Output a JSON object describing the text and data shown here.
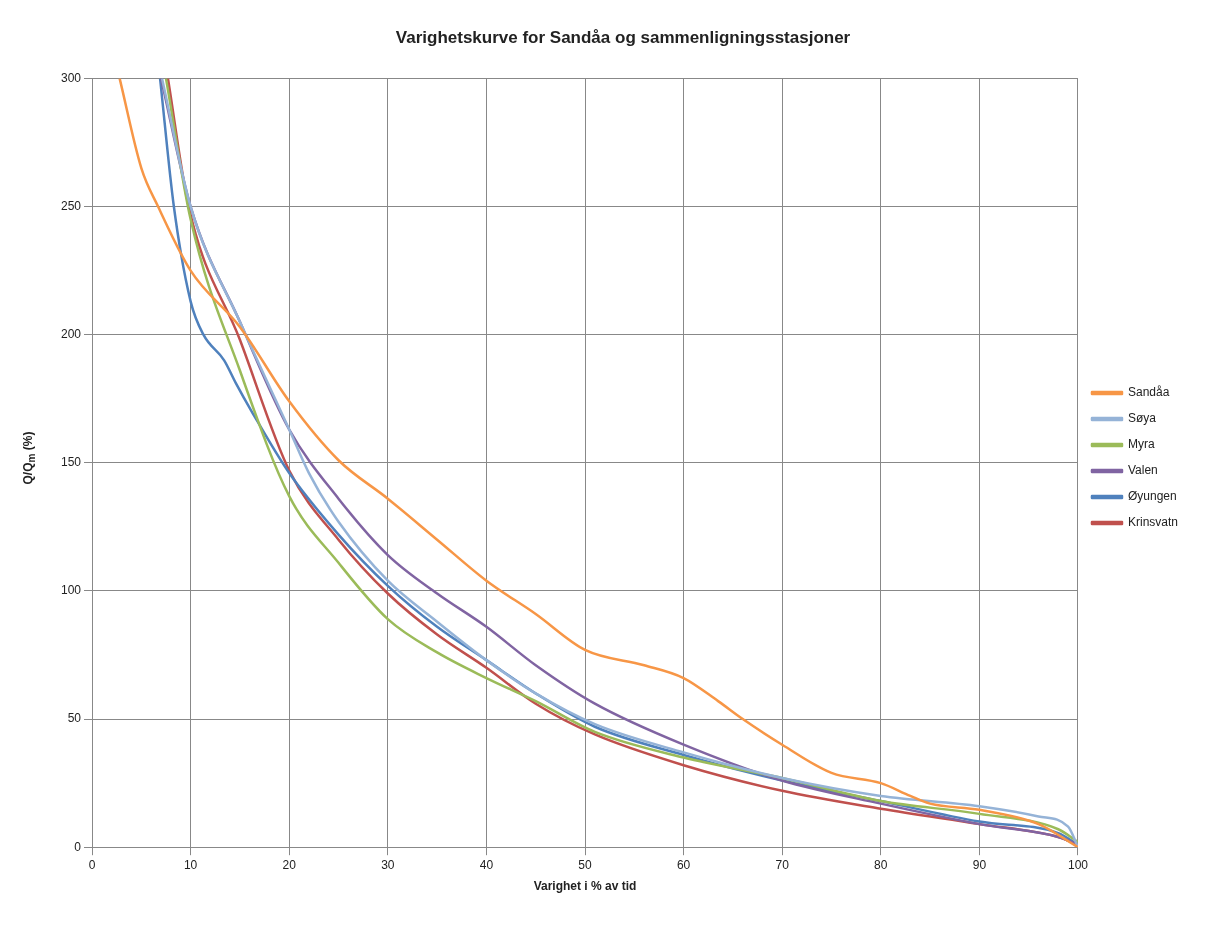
{
  "chart_data": {
    "type": "line",
    "title": "Varighetskurve for Sandåa og sammenligningsstasjoner",
    "xlabel": "Varighet i % av tid",
    "ylabel": "Q/Q$_{m}$ (%)",
    "xlim": [
      0,
      100
    ],
    "xticks": [
      0,
      10,
      20,
      30,
      40,
      50,
      60,
      70,
      80,
      90,
      100
    ],
    "ylim": [
      0,
      300
    ],
    "yticks": [
      0,
      50,
      100,
      150,
      200,
      250,
      300
    ],
    "grid": true,
    "legend": "right",
    "marker": "none",
    "line_style": "solid",
    "series": [
      {
        "name": "Sandåa",
        "color": "#f79646",
        "x": [
          2.8,
          5,
          6.7,
          10,
          15,
          20,
          25,
          30,
          35,
          40,
          45,
          50,
          56,
          60,
          63.5,
          66,
          70,
          75,
          80,
          83,
          85,
          90,
          96,
          100
        ],
        "values": [
          300,
          265,
          250,
          225,
          203,
          174,
          151,
          136,
          120,
          104,
          91,
          77,
          71,
          66,
          57,
          50,
          40,
          29,
          25,
          20,
          17,
          14.6,
          9,
          0
        ]
      },
      {
        "name": "Søya",
        "color": "#95b3d7",
        "x": [
          7.1,
          10,
          15,
          20,
          22,
          25,
          30,
          35,
          40,
          45,
          51,
          60,
          70,
          80,
          90,
          96,
          99,
          100
        ],
        "values": [
          300,
          250,
          205,
          163,
          146,
          127,
          104,
          88,
          73,
          60,
          48,
          37,
          27,
          20,
          16,
          12,
          8,
          0
        ]
      },
      {
        "name": "Myra",
        "color": "#9bbb59",
        "x": [
          7.5,
          10,
          15,
          20,
          25,
          30,
          35,
          40,
          45,
          51,
          60,
          70,
          80,
          90,
          98,
          100
        ],
        "values": [
          300,
          245,
          186,
          137,
          111,
          89,
          76,
          66,
          57,
          45,
          35,
          27,
          18,
          13,
          7,
          2
        ]
      },
      {
        "name": "Valen",
        "color": "#8064a2",
        "x": [
          7,
          10,
          15,
          20,
          25,
          30,
          35,
          40,
          45,
          51,
          60,
          70,
          80,
          90,
          98,
          100
        ],
        "values": [
          300,
          250,
          205,
          163,
          136,
          114,
          99,
          86,
          71,
          56,
          40,
          26,
          17,
          9,
          4,
          1
        ]
      },
      {
        "name": "Øyungen",
        "color": "#4f81bd",
        "x": [
          6.9,
          8.3,
          10,
          11.3,
          13.4,
          14.6,
          16.2,
          20,
          25,
          30,
          35,
          40,
          45,
          51,
          60,
          70,
          80,
          90,
          98,
          100
        ],
        "values": [
          300,
          250,
          213,
          200,
          190,
          181,
          170,
          146,
          122,
          102,
          86,
          73,
          60,
          47,
          36,
          26,
          18,
          10,
          5.5,
          1
        ]
      },
      {
        "name": "Krinsvatn",
        "color": "#c0504d",
        "x": [
          7.7,
          9.8,
          15,
          20,
          25,
          30,
          35,
          40,
          45,
          51,
          60,
          70,
          80,
          90,
          98,
          100
        ],
        "values": [
          300,
          250,
          198,
          147,
          120,
          99,
          83,
          70,
          56,
          44,
          32,
          22,
          15,
          9,
          4,
          1
        ]
      }
    ]
  }
}
